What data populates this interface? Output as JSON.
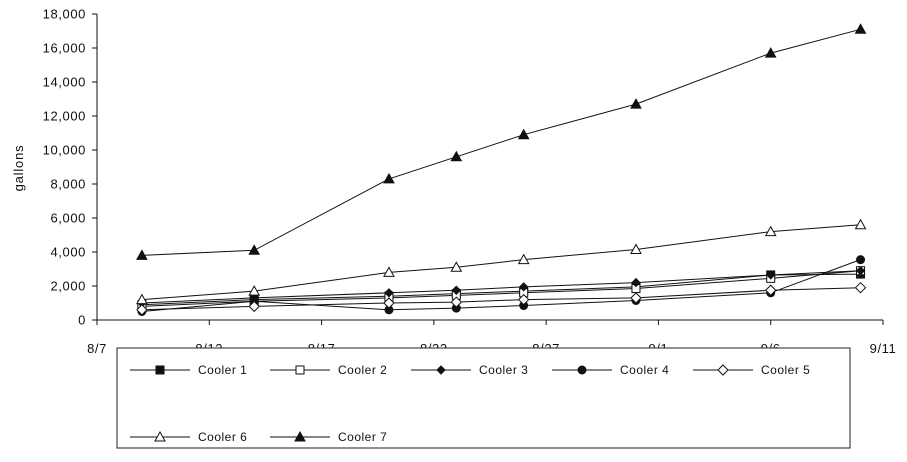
{
  "chart_data": {
    "type": "line",
    "title": "",
    "xlabel": "",
    "ylabel": "gallons",
    "x_ticks": [
      "8/7",
      "8/12",
      "8/17",
      "8/22",
      "8/27",
      "9/1",
      "9/6",
      "9/11"
    ],
    "x_range_days": [
      0,
      35
    ],
    "y_ticks": [
      "0",
      "2,000",
      "4,000",
      "6,000",
      "8,000",
      "10,000",
      "12,000",
      "14,000",
      "16,000",
      "18,000"
    ],
    "ylim": [
      0,
      18000
    ],
    "grid": false,
    "legend_position": "bottom",
    "series": [
      {
        "name": "Cooler 1",
        "marker": "square-filled",
        "color": "#111111",
        "x": [
          "8/9",
          "8/14",
          "8/20",
          "8/23",
          "8/26",
          "8/31",
          "9/6",
          "9/10"
        ],
        "values": [
          900,
          1200,
          1400,
          1550,
          1700,
          1950,
          2650,
          2700
        ]
      },
      {
        "name": "Cooler 2",
        "marker": "square-open",
        "color": "#111111",
        "x": [
          "8/9",
          "8/14",
          "8/20",
          "8/23",
          "8/26",
          "8/31",
          "9/6",
          "9/10"
        ],
        "values": [
          800,
          1100,
          1300,
          1450,
          1600,
          1850,
          2450,
          2900
        ]
      },
      {
        "name": "Cooler 3",
        "marker": "diamond-filled",
        "color": "#111111",
        "x": [
          "8/9",
          "8/14",
          "8/20",
          "8/23",
          "8/26",
          "8/31",
          "9/6",
          "9/10"
        ],
        "values": [
          1000,
          1300,
          1600,
          1750,
          1950,
          2200,
          2650,
          2900
        ]
      },
      {
        "name": "Cooler 4",
        "marker": "circle-filled",
        "color": "#111111",
        "x": [
          "8/9",
          "8/14",
          "8/20",
          "8/23",
          "8/26",
          "8/31",
          "9/6",
          "9/10"
        ],
        "values": [
          500,
          1100,
          600,
          700,
          850,
          1150,
          1600,
          3550
        ]
      },
      {
        "name": "Cooler 5",
        "marker": "diamond-open",
        "color": "#111111",
        "x": [
          "8/9",
          "8/14",
          "8/20",
          "8/23",
          "8/26",
          "8/31",
          "9/6",
          "9/10"
        ],
        "values": [
          600,
          800,
          1000,
          1050,
          1200,
          1300,
          1750,
          1900
        ]
      },
      {
        "name": "Cooler 6",
        "marker": "triangle-open",
        "color": "#111111",
        "x": [
          "8/9",
          "8/14",
          "8/20",
          "8/23",
          "8/26",
          "8/31",
          "9/6",
          "9/10"
        ],
        "values": [
          1200,
          1700,
          2800,
          3100,
          3550,
          4150,
          5200,
          5600
        ]
      },
      {
        "name": "Cooler 7",
        "marker": "triangle-filled",
        "color": "#111111",
        "x": [
          "8/9",
          "8/14",
          "8/20",
          "8/23",
          "8/26",
          "8/31",
          "9/6",
          "9/10"
        ],
        "values": [
          3800,
          4100,
          8300,
          9600,
          10900,
          12700,
          15700,
          17100
        ]
      }
    ]
  }
}
